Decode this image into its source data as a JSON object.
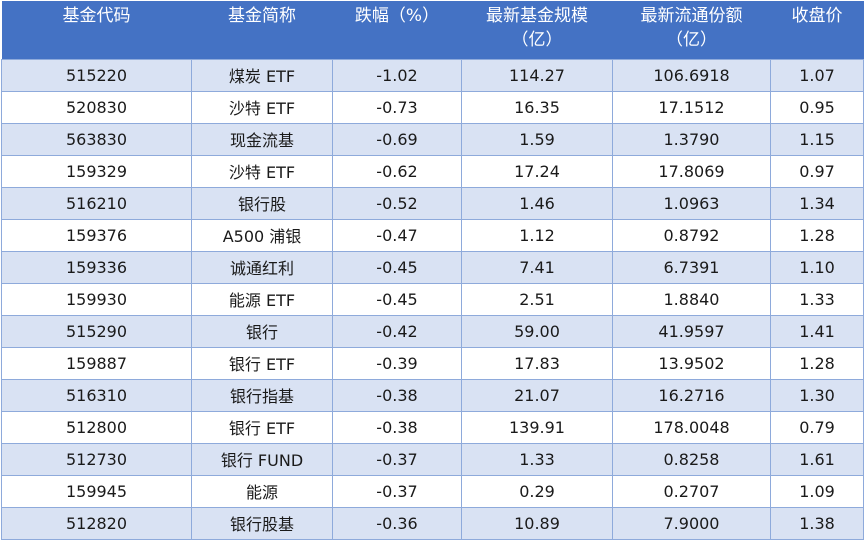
{
  "headers": [
    {
      "line1": "基金代码",
      "line2": ""
    },
    {
      "line1": "基金简称",
      "line2": ""
    },
    {
      "line1": "跌幅（%）",
      "line2": ""
    },
    {
      "line1": "最新基金规模",
      "line2": "（亿）"
    },
    {
      "line1": "最新流通份额",
      "line2": "（亿）"
    },
    {
      "line1": "收盘价",
      "line2": ""
    }
  ],
  "rows": [
    {
      "code": "515220",
      "name": "煤炭 ETF",
      "change": "-1.02",
      "scale": "114.27",
      "shares": "106.6918",
      "close": "1.07"
    },
    {
      "code": "520830",
      "name": "沙特 ETF",
      "change": "-0.73",
      "scale": "16.35",
      "shares": "17.1512",
      "close": "0.95"
    },
    {
      "code": "563830",
      "name": "现金流基",
      "change": "-0.69",
      "scale": "1.59",
      "shares": "1.3790",
      "close": "1.15"
    },
    {
      "code": "159329",
      "name": "沙特 ETF",
      "change": "-0.62",
      "scale": "17.24",
      "shares": "17.8069",
      "close": "0.97"
    },
    {
      "code": "516210",
      "name": "银行股",
      "change": "-0.52",
      "scale": "1.46",
      "shares": "1.0963",
      "close": "1.34"
    },
    {
      "code": "159376",
      "name": "A500 浦银",
      "change": "-0.47",
      "scale": "1.12",
      "shares": "0.8792",
      "close": "1.28"
    },
    {
      "code": "159336",
      "name": "诚通红利",
      "change": "-0.45",
      "scale": "7.41",
      "shares": "6.7391",
      "close": "1.10"
    },
    {
      "code": "159930",
      "name": "能源 ETF",
      "change": "-0.45",
      "scale": "2.51",
      "shares": "1.8840",
      "close": "1.33"
    },
    {
      "code": "515290",
      "name": "银行",
      "change": "-0.42",
      "scale": "59.00",
      "shares": "41.9597",
      "close": "1.41"
    },
    {
      "code": "159887",
      "name": "银行 ETF",
      "change": "-0.39",
      "scale": "17.83",
      "shares": "13.9502",
      "close": "1.28"
    },
    {
      "code": "516310",
      "name": "银行指基",
      "change": "-0.38",
      "scale": "21.07",
      "shares": "16.2716",
      "close": "1.30"
    },
    {
      "code": "512800",
      "name": "银行 ETF",
      "change": "-0.38",
      "scale": "139.91",
      "shares": "178.0048",
      "close": "0.79"
    },
    {
      "code": "512730",
      "name": "银行 FUND",
      "change": "-0.37",
      "scale": "1.33",
      "shares": "0.8258",
      "close": "1.61"
    },
    {
      "code": "159945",
      "name": "能源",
      "change": "-0.37",
      "scale": "0.29",
      "shares": "0.2707",
      "close": "1.09"
    },
    {
      "code": "512820",
      "name": "银行股基",
      "change": "-0.36",
      "scale": "10.89",
      "shares": "7.9000",
      "close": "1.38"
    }
  ]
}
